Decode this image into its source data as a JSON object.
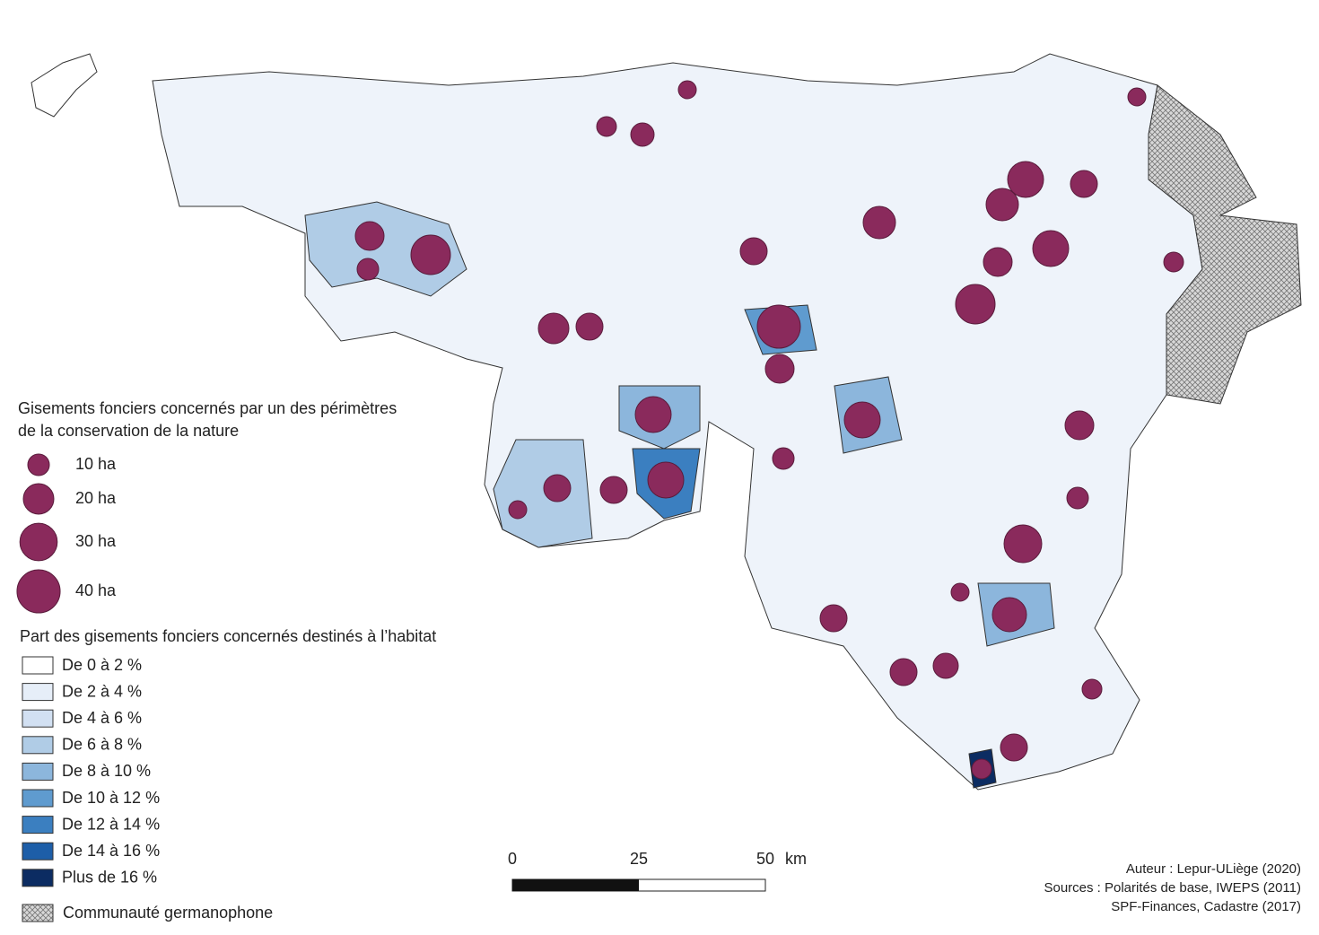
{
  "legend_sizes": {
    "title_line1": "Gisements fonciers concernés par un des périmètres",
    "title_line2": "de la conservation de la nature",
    "items": [
      {
        "value": 10,
        "label": "10 ha"
      },
      {
        "value": 20,
        "label": "20 ha"
      },
      {
        "value": 30,
        "label": "30 ha"
      },
      {
        "value": 40,
        "label": "40 ha"
      }
    ],
    "color": "#8a2a5c"
  },
  "legend_classes": {
    "title": "Part des gisements fonciers concernés destinés à l’habitat",
    "items": [
      {
        "label": "De 0 à 2 %",
        "color": "#ffffff"
      },
      {
        "label": "De 2 à 4 %",
        "color": "#e6eef8"
      },
      {
        "label": "De 4 à 6 %",
        "color": "#d2e0f2"
      },
      {
        "label": "De 6 à 8 %",
        "color": "#b0cce6"
      },
      {
        "label": "De 8 à 10 %",
        "color": "#8cb6dc"
      },
      {
        "label": "De 10 à 12 %",
        "color": "#5f9bcf"
      },
      {
        "label": "De 12 à 14 %",
        "color": "#3b7fc0"
      },
      {
        "label": "De 14 à 16 %",
        "color": "#1d5ea8"
      },
      {
        "label": "Plus de 16 %",
        "color": "#0c2c62"
      }
    ],
    "special": "Communauté germanophone"
  },
  "scale_bar": {
    "ticks": [
      0,
      25,
      50
    ],
    "unit": "km"
  },
  "credits": [
    "Auteur : Lepur-ULiège (2020)",
    "Sources : Polarités de base, IWEPS (2011)",
    "SPF-Finances, Cadastre (2017)"
  ]
}
